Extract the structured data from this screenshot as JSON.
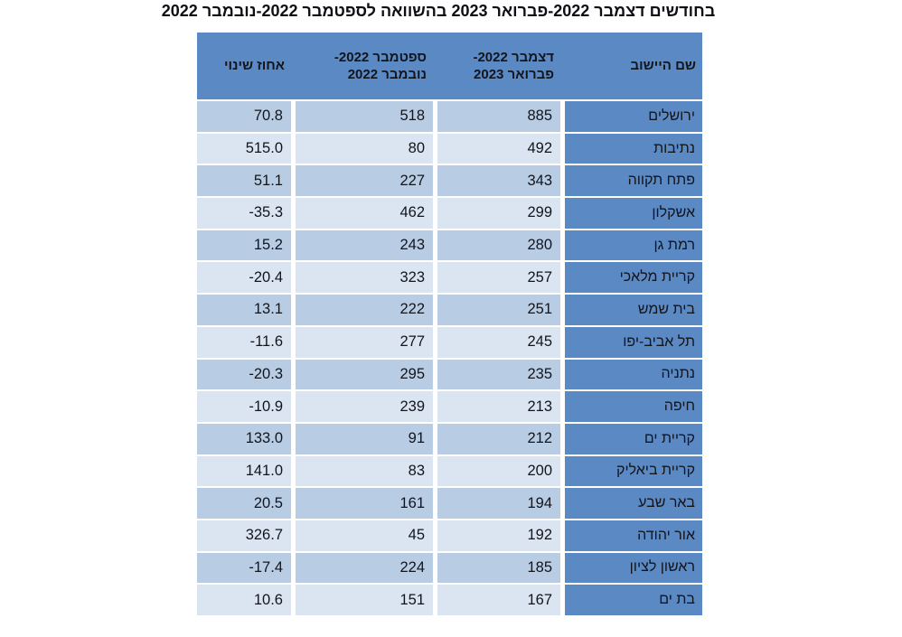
{
  "page": {
    "title": "בחודשים דצמבר 2022-פברואר 2023 בהשוואה לספטמבר 2022-נובמבר 2022"
  },
  "colors": {
    "header_blue": "#5b89c4",
    "row_shaded": "#b8cce4",
    "row_light": "#dbe5f1",
    "separator": "#ffffff",
    "text": "#12151c"
  },
  "table": {
    "headers": {
      "name": "שם היישוב",
      "period_current": "דצמבר 2022-\nפברואר 2023",
      "period_previous": "ספטמבר 2022-\nנובמבר 2022",
      "percent_change": "אחוז שינוי"
    },
    "rows": [
      {
        "name": "ירושלים",
        "current": "885",
        "previous": "518",
        "change": "70.8"
      },
      {
        "name": "נתיבות",
        "current": "492",
        "previous": "80",
        "change": "515.0"
      },
      {
        "name": "פתח תקווה",
        "current": "343",
        "previous": "227",
        "change": "51.1"
      },
      {
        "name": "אשקלון",
        "current": "299",
        "previous": "462",
        "change": "-35.3"
      },
      {
        "name": "רמת גן",
        "current": "280",
        "previous": "243",
        "change": "15.2"
      },
      {
        "name": "קריית מלאכי",
        "current": "257",
        "previous": "323",
        "change": "-20.4"
      },
      {
        "name": "בית שמש",
        "current": "251",
        "previous": "222",
        "change": "13.1"
      },
      {
        "name": "תל אביב-יפו",
        "current": "245",
        "previous": "277",
        "change": "-11.6"
      },
      {
        "name": "נתניה",
        "current": "235",
        "previous": "295",
        "change": "-20.3"
      },
      {
        "name": "חיפה",
        "current": "213",
        "previous": "239",
        "change": "-10.9"
      },
      {
        "name": "קריית ים",
        "current": "212",
        "previous": "91",
        "change": "133.0"
      },
      {
        "name": "קריית ביאליק",
        "current": "200",
        "previous": "83",
        "change": "141.0"
      },
      {
        "name": "באר שבע",
        "current": "194",
        "previous": "161",
        "change": "20.5"
      },
      {
        "name": "אור יהודה",
        "current": "192",
        "previous": "45",
        "change": "326.7"
      },
      {
        "name": "ראשון לציון",
        "current": "185",
        "previous": "224",
        "change": "-17.4"
      },
      {
        "name": "בת ים",
        "current": "167",
        "previous": "151",
        "change": "10.6"
      }
    ]
  }
}
